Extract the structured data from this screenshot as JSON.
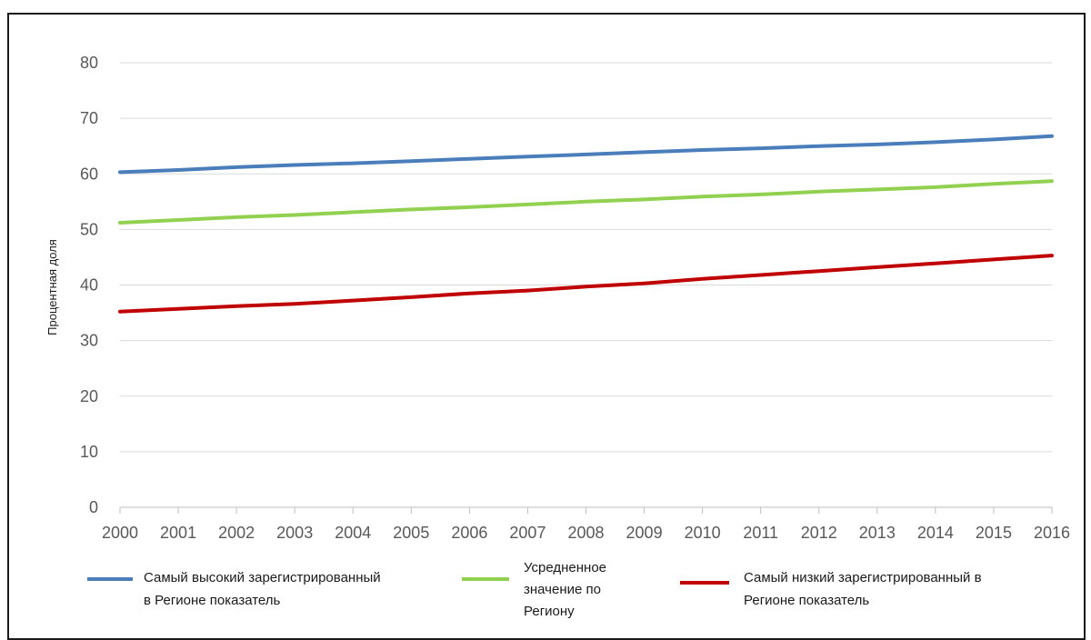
{
  "chart_data": {
    "type": "line",
    "title": "",
    "xlabel": "",
    "ylabel": "Процентная доля",
    "ylim": [
      0,
      80
    ],
    "yticks": [
      "0",
      "10",
      "20",
      "30",
      "40",
      "50",
      "60",
      "70",
      "80"
    ],
    "x": [
      "2000",
      "2001",
      "2002",
      "2003",
      "2004",
      "2005",
      "2006",
      "2007",
      "2008",
      "2009",
      "2010",
      "2011",
      "2012",
      "2013",
      "2014",
      "2015",
      "2016"
    ],
    "grid": true,
    "legend_position": "bottom",
    "series": [
      {
        "name": "Самый высокий зарегистрированный в Регионе показатель",
        "name_lines": [
          "Самый высокий зарегистрированный",
          "в Регионе показатель"
        ],
        "color": "#4a7ebb",
        "values": [
          60.3,
          60.7,
          61.2,
          61.6,
          61.9,
          62.3,
          62.7,
          63.1,
          63.5,
          63.9,
          64.3,
          64.6,
          65.0,
          65.3,
          65.7,
          66.2,
          66.8
        ]
      },
      {
        "name": "Усредненное значение по Региону",
        "name_lines": [
          "Усредненное",
          "значение по",
          "Региону"
        ],
        "color": "#92d050",
        "values": [
          51.2,
          51.7,
          52.2,
          52.6,
          53.1,
          53.6,
          54.0,
          54.5,
          55.0,
          55.4,
          55.9,
          56.3,
          56.8,
          57.2,
          57.6,
          58.2,
          58.7
        ]
      },
      {
        "name": "Самый низкий зарегистрированный в Регионе показатель",
        "name_lines": [
          "Самый низкий зарегистрированный в",
          "Регионе показатель"
        ],
        "color": "#c00000",
        "values": [
          35.2,
          35.7,
          36.2,
          36.6,
          37.2,
          37.8,
          38.5,
          39.0,
          39.7,
          40.3,
          41.1,
          41.8,
          42.5,
          43.2,
          43.9,
          44.6,
          45.3
        ]
      }
    ]
  }
}
